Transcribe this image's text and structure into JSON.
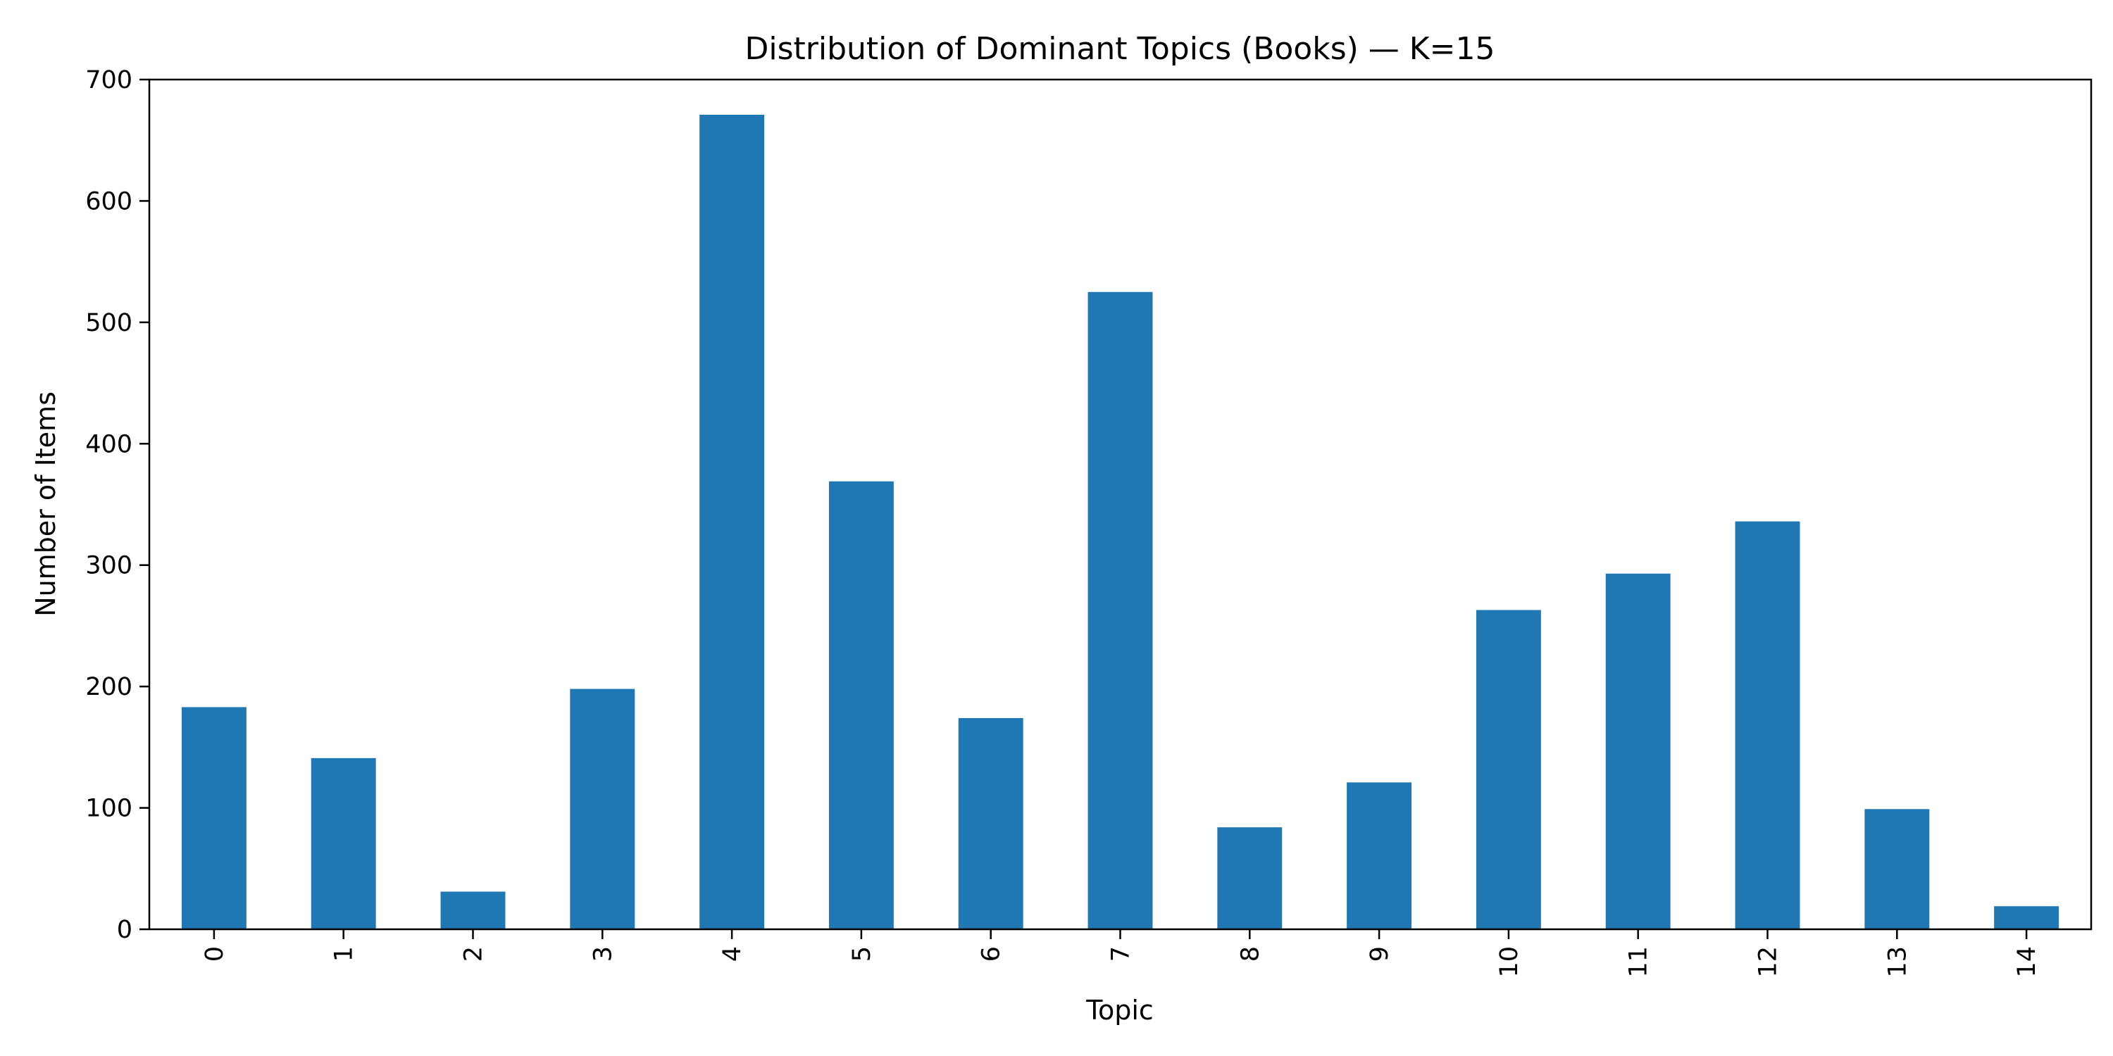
{
  "chart_data": {
    "type": "bar",
    "title": "Distribution of Dominant Topics (Books) — K=15",
    "xlabel": "Topic",
    "ylabel": "Number of Items",
    "categories": [
      "0",
      "1",
      "2",
      "3",
      "4",
      "5",
      "6",
      "7",
      "8",
      "9",
      "10",
      "11",
      "12",
      "13",
      "14"
    ],
    "values": [
      183,
      141,
      31,
      198,
      671,
      369,
      174,
      525,
      84,
      121,
      263,
      293,
      336,
      99,
      19
    ],
    "ylim": [
      0,
      700
    ],
    "yticks": [
      0,
      100,
      200,
      300,
      400,
      500,
      600,
      700
    ],
    "bar_color": "#1f77b4",
    "grid": false,
    "legend": false,
    "xtick_rotation": "vertical"
  }
}
